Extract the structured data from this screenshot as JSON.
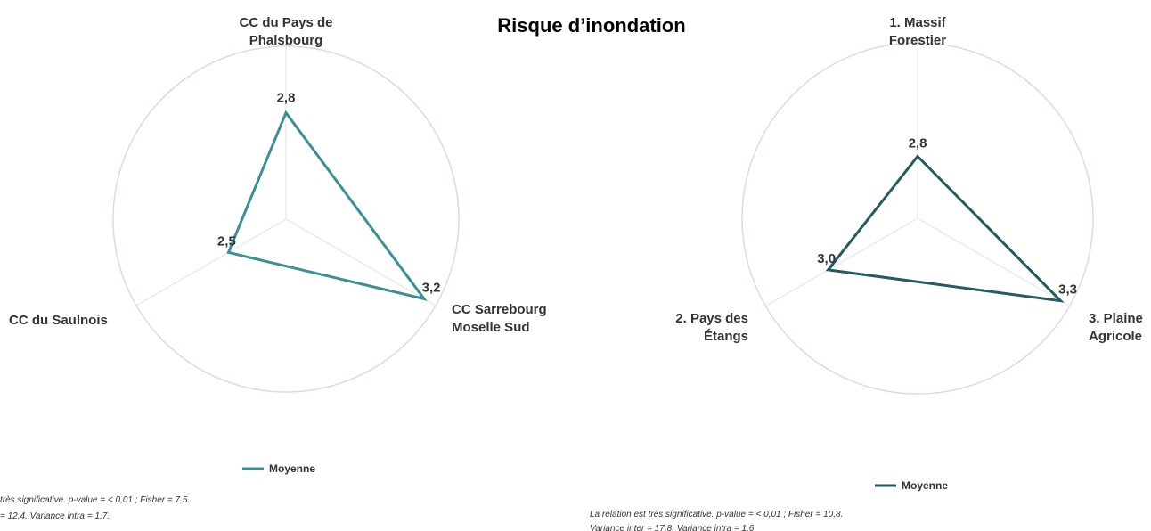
{
  "title": "Risque d’inondation",
  "colors": {
    "left_series": "#3a8f98",
    "right_series": "#245a63",
    "circle": "#d5dcec",
    "spoke": "#e6e6e6"
  },
  "chart_data": [
    {
      "type": "radar",
      "axes": [
        "CC du Pays de Phalsbourg",
        "CC Sarrebourg Moselle Sud",
        "CC du Saulnois"
      ],
      "axis_label_lines": [
        [
          "CC du Pays de",
          "Phalsbourg"
        ],
        [
          "CC Sarrebourg",
          "Moselle Sud"
        ],
        [
          "CC du Saulnois"
        ]
      ],
      "series": [
        {
          "name": "Moyenne",
          "values": [
            2.8,
            3.2,
            2.5
          ],
          "labels": [
            "2,8",
            "3,2",
            "2,5"
          ]
        }
      ],
      "range": [
        2,
        3.3
      ],
      "grid": "outer circle and spokes",
      "notes": [
        "très significative. p-value = < 0,01 ; Fisher = 7,5.",
        "= 12,4. Variance intra = 1,7."
      ]
    },
    {
      "type": "radar",
      "axes": [
        "1. Massif Forestier",
        "3. Plaine Agricole",
        "2. Pays des Étangs"
      ],
      "axis_label_lines": [
        [
          "1. Massif",
          "Forestier"
        ],
        [
          "3. Plaine",
          "Agricole"
        ],
        [
          "2. Pays des",
          "Étangs"
        ]
      ],
      "series": [
        {
          "name": "Moyenne",
          "values": [
            2.8,
            3.3,
            3.0
          ],
          "labels": [
            "2,8",
            "3,3",
            "3,0"
          ]
        }
      ],
      "range": [
        2.5,
        3.35
      ],
      "grid": "outer circle and spokes",
      "notes": [
        "La relation est très significative. p-value = < 0,01 ; Fisher = 10,8.",
        "Variance inter = 17,8. Variance intra = 1,6."
      ]
    }
  ]
}
